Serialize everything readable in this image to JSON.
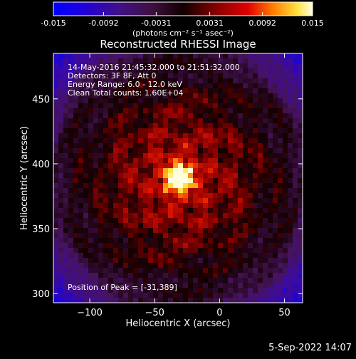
{
  "colorbar": {
    "ticks": [
      -0.015,
      -0.0092,
      -0.0031,
      0.0031,
      0.0092,
      0.015
    ],
    "tick_labels": [
      "-0.015",
      "-0.0092",
      "-0.0031",
      "0.0031",
      "0.0092",
      "0.015"
    ],
    "range": [
      -0.015,
      0.015
    ],
    "units_label": "(photons cm⁻² s⁻¹ asec⁻²)"
  },
  "chart_data": {
    "type": "heatmap",
    "title": "Reconstructed RHESSI Image",
    "xlabel": "Heliocentric X (arcsec)",
    "ylabel": "Heliocentric Y (arcsec)",
    "xlim": [
      -128,
      64
    ],
    "ylim": [
      293,
      485
    ],
    "xticks": [
      -100,
      -50,
      0,
      50
    ],
    "xtick_labels": [
      "−100",
      "−50",
      "0",
      "50"
    ],
    "yticks": [
      300,
      350,
      400,
      450
    ],
    "ytick_labels": [
      "300",
      "350",
      "400",
      "450"
    ],
    "annotations": [
      "14-May-2016 21:45:32.000 to 21:51:32.000",
      "Detectors: 3F 8F, Att 0",
      "Energy Range: 6.0 - 12.0 keV",
      "Clean     Total counts: 1.60E+04"
    ],
    "peak_label": "Position of Peak = [-31,389]",
    "peak": {
      "x": -31,
      "y": 389
    }
  },
  "footer": {
    "timestamp": "5-Sep-2022 14:07"
  }
}
